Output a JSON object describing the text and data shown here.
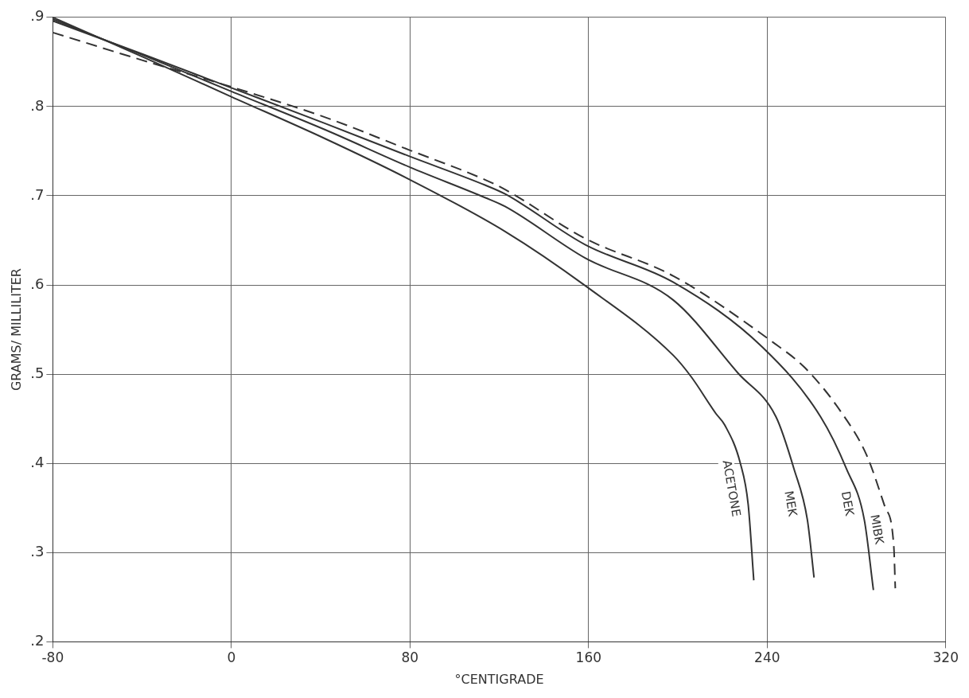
{
  "chart_data": {
    "type": "line",
    "xlabel": "°CENTIGRADE",
    "ylabel": "GRAMS/ MILLILITER",
    "xlim": [
      -80,
      320
    ],
    "ylim": [
      0.2,
      0.9
    ],
    "xticks": [
      -80,
      0,
      80,
      160,
      240,
      320
    ],
    "yticks": [
      {
        "value": 0.2,
        "label": ".2"
      },
      {
        "value": 0.3,
        "label": ".3"
      },
      {
        "value": 0.4,
        "label": ".4"
      },
      {
        "value": 0.5,
        "label": ".5"
      },
      {
        "value": 0.6,
        "label": ".6"
      },
      {
        "value": 0.7,
        "label": ".7"
      },
      {
        "value": 0.8,
        "label": ".8"
      },
      {
        "value": 0.9,
        "label": ".9"
      }
    ],
    "grid": true,
    "legend": false,
    "marker": "none",
    "series": [
      {
        "name": "ACETONE",
        "color": "#333333",
        "line_style": "solid",
        "x": [
          -80,
          -40,
          0,
          42,
          80,
          122.6,
          158.6,
          198,
          206,
          217,
          221,
          228,
          231.5,
          234
        ],
        "values": [
          0.9,
          0.856,
          0.811,
          0.764,
          0.718,
          0.66,
          0.599,
          0.521,
          0.497,
          0.456,
          0.443,
          0.4,
          0.354,
          0.269
        ]
      },
      {
        "name": "MEK",
        "color": "#333333",
        "line_style": "solid",
        "x": [
          -80,
          -40,
          0,
          42,
          80,
          113.6,
          122.6,
          158.6,
          198,
          227,
          244,
          252,
          258,
          261
        ],
        "values": [
          0.898,
          0.858,
          0.817,
          0.774,
          0.732,
          0.698,
          0.688,
          0.63,
          0.583,
          0.501,
          0.452,
          0.394,
          0.337,
          0.272
        ]
      },
      {
        "name": "DEK",
        "color": "#333333",
        "line_style": "solid",
        "x": [
          -80,
          -40,
          0,
          42,
          80,
          113.6,
          122.6,
          158.6,
          198,
          238,
          264,
          275.5,
          283.5,
          287.6
        ],
        "values": [
          0.896,
          0.859,
          0.821,
          0.781,
          0.744,
          0.712,
          0.702,
          0.645,
          0.603,
          0.53,
          0.452,
          0.394,
          0.337,
          0.258
        ]
      },
      {
        "name": "MIBK",
        "color": "#333333",
        "line_style": "dashed",
        "x": [
          -80,
          -40,
          0,
          42,
          80,
          113.6,
          122.6,
          158.6,
          198,
          243,
          257,
          273,
          284.6,
          292.8,
          296.7,
          297.4
        ],
        "values": [
          0.883,
          0.852,
          0.822,
          0.788,
          0.751,
          0.718,
          0.707,
          0.652,
          0.61,
          0.535,
          0.507,
          0.458,
          0.409,
          0.351,
          0.308,
          0.26
        ]
      }
    ]
  }
}
